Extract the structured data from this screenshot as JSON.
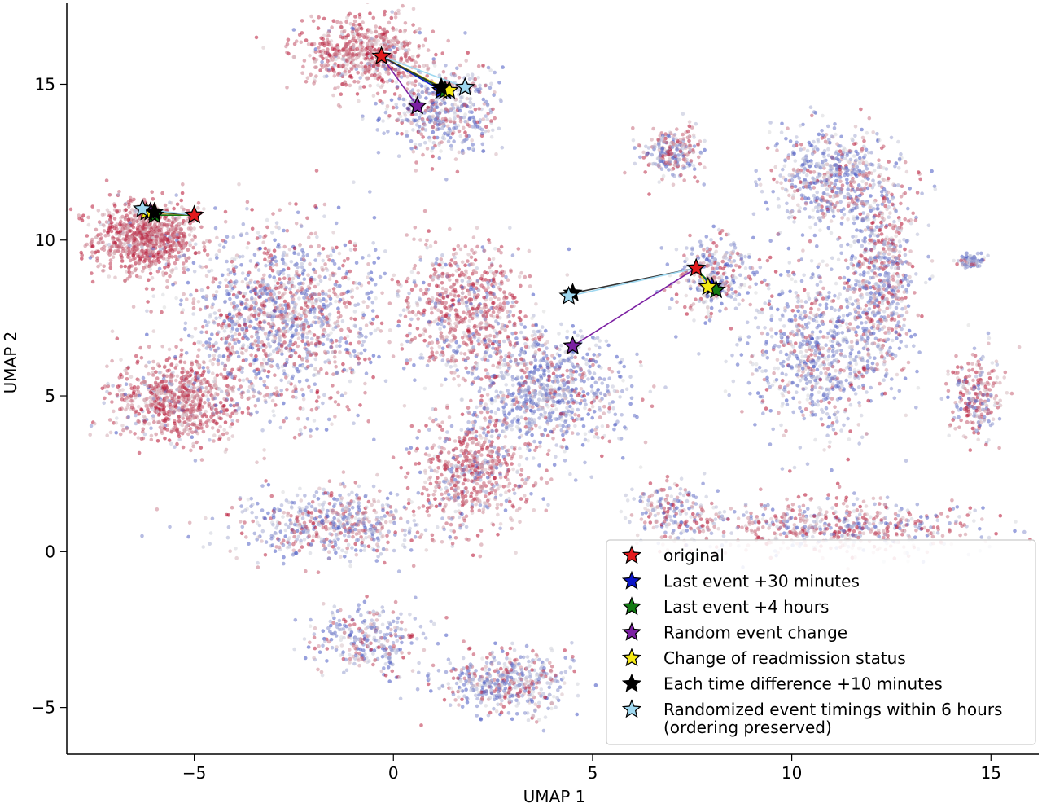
{
  "chart_data": {
    "type": "scatter",
    "title": "",
    "xlabel": "UMAP 1",
    "ylabel": "UMAP 2",
    "xlim": [
      -8.2,
      16.2
    ],
    "ylim": [
      -6.5,
      17.6
    ],
    "xticks": [
      -5,
      0,
      5,
      10,
      15
    ],
    "yticks": [
      -5,
      0,
      5,
      10,
      15
    ],
    "xtick_labels": [
      "−5",
      "0",
      "5",
      "10",
      "15"
    ],
    "ytick_labels": [
      "−5",
      "0",
      "5",
      "10",
      "15"
    ],
    "grid": false,
    "legend_position": "lower-right",
    "colormap": "coolwarm",
    "background_clusters": [
      {
        "cx": -6.2,
        "cy": 10.1,
        "rx": 1.2,
        "ry": 1.1,
        "bias": 0.95,
        "n": 900
      },
      {
        "cx": -5.4,
        "cy": 4.9,
        "rx": 1.5,
        "ry": 1.2,
        "bias": 0.88,
        "n": 800
      },
      {
        "cx": -2.8,
        "cy": 7.5,
        "rx": 2.2,
        "ry": 2.6,
        "bias": 0.45,
        "n": 1400
      },
      {
        "cx": -0.8,
        "cy": 16.0,
        "rx": 1.4,
        "ry": 1.0,
        "bias": 0.92,
        "n": 600
      },
      {
        "cx": 1.2,
        "cy": 14.2,
        "rx": 1.3,
        "ry": 1.4,
        "bias": 0.35,
        "n": 500
      },
      {
        "cx": 1.8,
        "cy": 7.8,
        "rx": 1.5,
        "ry": 1.8,
        "bias": 0.75,
        "n": 700
      },
      {
        "cx": 3.8,
        "cy": 5.2,
        "rx": 1.8,
        "ry": 1.8,
        "bias": 0.25,
        "n": 900
      },
      {
        "cx": 2.0,
        "cy": 2.6,
        "rx": 1.3,
        "ry": 1.6,
        "bias": 0.78,
        "n": 600
      },
      {
        "cx": -1.5,
        "cy": 0.9,
        "rx": 2.2,
        "ry": 1.0,
        "bias": 0.4,
        "n": 600
      },
      {
        "cx": 2.8,
        "cy": -4.2,
        "rx": 1.5,
        "ry": 0.9,
        "bias": 0.3,
        "n": 500
      },
      {
        "cx": -0.6,
        "cy": -2.8,
        "rx": 1.3,
        "ry": 0.9,
        "bias": 0.35,
        "n": 300
      },
      {
        "cx": 7.0,
        "cy": 12.8,
        "rx": 0.7,
        "ry": 0.7,
        "bias": 0.5,
        "n": 250
      },
      {
        "cx": 8.0,
        "cy": 8.8,
        "rx": 0.9,
        "ry": 1.2,
        "bias": 0.4,
        "n": 300
      },
      {
        "cx": 11.0,
        "cy": 12.0,
        "rx": 1.4,
        "ry": 1.6,
        "bias": 0.3,
        "n": 600
      },
      {
        "cx": 10.7,
        "cy": 6.5,
        "rx": 1.6,
        "ry": 2.4,
        "bias": 0.28,
        "n": 800
      },
      {
        "cx": 12.3,
        "cy": 9.0,
        "rx": 0.8,
        "ry": 2.8,
        "bias": 0.45,
        "n": 600
      },
      {
        "cx": 14.6,
        "cy": 5.0,
        "rx": 0.6,
        "ry": 1.2,
        "bias": 0.65,
        "n": 250
      },
      {
        "cx": 14.5,
        "cy": 9.3,
        "rx": 0.35,
        "ry": 0.2,
        "bias": 0.15,
        "n": 80
      },
      {
        "cx": 11.0,
        "cy": 0.8,
        "rx": 3.3,
        "ry": 0.8,
        "bias": 0.6,
        "n": 600
      },
      {
        "cx": 7.0,
        "cy": 1.2,
        "rx": 1.0,
        "ry": 1.0,
        "bias": 0.4,
        "n": 200
      }
    ],
    "series": [
      {
        "name": "original",
        "color": "#e31a1c",
        "points": [
          [
            -0.3,
            15.9
          ],
          [
            -5.0,
            10.8
          ],
          [
            7.6,
            9.1
          ]
        ]
      },
      {
        "name": "Last event +30 minutes",
        "color": "#0a14c8",
        "points": [
          [
            1.2,
            14.8
          ],
          [
            -6.1,
            10.9
          ],
          [
            8.0,
            8.5
          ]
        ]
      },
      {
        "name": "Last event +4 hours",
        "color": "#137a13",
        "points": [
          [
            1.3,
            14.8
          ],
          [
            -6.0,
            10.8
          ],
          [
            8.1,
            8.4
          ]
        ]
      },
      {
        "name": "Random event change",
        "color": "#7b1fa2",
        "points": [
          [
            0.6,
            14.3
          ],
          [
            -6.1,
            10.9
          ],
          [
            4.5,
            6.6
          ]
        ]
      },
      {
        "name": "Change of readmission status",
        "color": "#f5ea14",
        "points": [
          [
            1.4,
            14.8
          ],
          [
            -6.2,
            10.9
          ],
          [
            7.9,
            8.5
          ]
        ]
      },
      {
        "name": "Each time difference +10 minutes",
        "color": "#000000",
        "points": [
          [
            1.2,
            14.9
          ],
          [
            -6.0,
            10.9
          ],
          [
            4.5,
            8.3
          ]
        ]
      },
      {
        "name": "Randomized event timings within 6 hours\n(ordering preserved)",
        "color": "#9fd8f0",
        "points": [
          [
            1.8,
            14.9
          ],
          [
            -6.3,
            11.0
          ],
          [
            4.4,
            8.2
          ]
        ]
      }
    ],
    "legend": [
      {
        "label": "original",
        "color": "#e31a1c"
      },
      {
        "label": "Last event +30 minutes",
        "color": "#0a14c8"
      },
      {
        "label": "Last event +4 hours",
        "color": "#137a13"
      },
      {
        "label": "Random event change",
        "color": "#7b1fa2"
      },
      {
        "label": "Change of readmission status",
        "color": "#f5ea14"
      },
      {
        "label": "Each time difference +10 minutes",
        "color": "#000000"
      },
      {
        "label": "Randomized event timings within 6 hours",
        "label2": "(ordering preserved)",
        "color": "#9fd8f0"
      }
    ]
  }
}
